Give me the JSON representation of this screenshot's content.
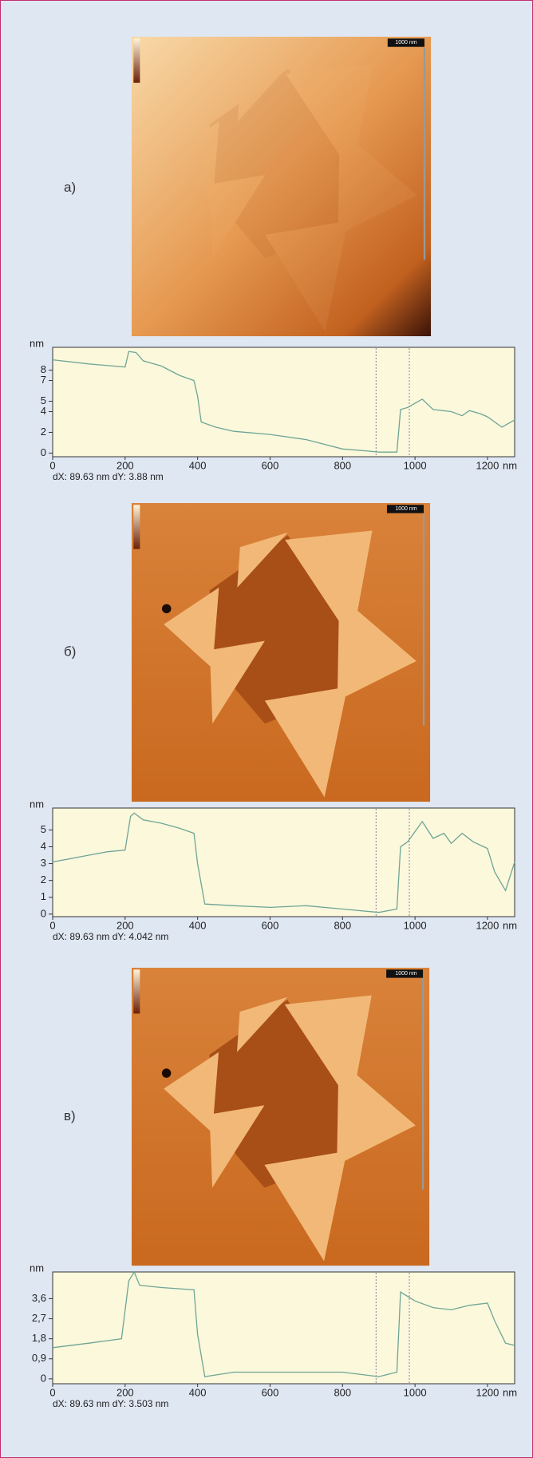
{
  "chart_data": [
    {
      "type": "line",
      "panel_label": "а)",
      "image_scale_label": "1000 nm",
      "y_label": "nm",
      "x_label": "nm",
      "caption": "dX: 89.63 nm dY: 3.88 nm",
      "color": "#6fa595",
      "x": [
        0,
        100,
        200,
        210,
        230,
        250,
        300,
        350,
        390,
        400,
        410,
        450,
        500,
        600,
        700,
        800,
        870,
        900,
        950,
        960,
        980,
        1000,
        1020,
        1050,
        1100,
        1130,
        1150,
        1180,
        1200,
        1240,
        1275
      ],
      "values": [
        9,
        8.6,
        8.3,
        9.8,
        9.7,
        8.9,
        8.4,
        7.5,
        7,
        5.5,
        3,
        2.5,
        2.1,
        1.8,
        1.3,
        0.4,
        0.2,
        0.1,
        0.1,
        4.2,
        4.4,
        4.8,
        5.2,
        4.2,
        4,
        3.6,
        4.1,
        3.8,
        3.5,
        2.5,
        3.2
      ],
      "xlim": [
        0,
        1275
      ],
      "ylim": [
        -0.35,
        10.2
      ],
      "xticks": [
        0,
        200,
        400,
        600,
        800,
        1000,
        1200
      ],
      "yticks": [
        0,
        2,
        4,
        5,
        7,
        8
      ]
    },
    {
      "type": "line",
      "panel_label": "б)",
      "image_scale_label": "1000 nm",
      "y_label": "nm",
      "x_label": "nm",
      "caption": "dX: 89.63 nm dY: 4.042 nm",
      "color": "#6fa595",
      "x": [
        0,
        50,
        100,
        150,
        200,
        215,
        225,
        250,
        300,
        350,
        390,
        400,
        420,
        500,
        600,
        700,
        800,
        900,
        950,
        960,
        980,
        1000,
        1020,
        1050,
        1080,
        1100,
        1130,
        1160,
        1200,
        1220,
        1250,
        1275
      ],
      "values": [
        3.1,
        3.3,
        3.5,
        3.7,
        3.8,
        5.8,
        6,
        5.6,
        5.4,
        5.1,
        4.8,
        3,
        0.6,
        0.5,
        0.4,
        0.5,
        0.3,
        0.1,
        0.3,
        4,
        4.3,
        4.9,
        5.5,
        4.5,
        4.8,
        4.2,
        4.8,
        4.3,
        3.9,
        2.5,
        1.4,
        3.1
      ],
      "xlim": [
        0,
        1275
      ],
      "ylim": [
        -0.15,
        6.3
      ],
      "xticks": [
        0,
        200,
        400,
        600,
        800,
        1000,
        1200
      ],
      "yticks": [
        0,
        1,
        2,
        3,
        4,
        5
      ]
    },
    {
      "type": "line",
      "panel_label": "в)",
      "image_scale_label": "1000 nm",
      "y_label": "nm",
      "x_label": "nm",
      "caption": "dX: 89.63 nm dY: 3.503 nm",
      "color": "#6fa595",
      "x": [
        0,
        100,
        190,
        210,
        225,
        240,
        300,
        390,
        400,
        420,
        500,
        600,
        700,
        800,
        900,
        950,
        960,
        1000,
        1050,
        1100,
        1150,
        1200,
        1220,
        1250,
        1275
      ],
      "values": [
        1.4,
        1.6,
        1.8,
        4.4,
        4.8,
        4.2,
        4.1,
        4,
        2,
        0.1,
        0.3,
        0.3,
        0.3,
        0.3,
        0.1,
        0.3,
        3.9,
        3.5,
        3.2,
        3.1,
        3.3,
        3.4,
        2.6,
        1.6,
        1.5
      ],
      "xlim": [
        0,
        1275
      ],
      "ylim": [
        -0.22,
        4.8
      ],
      "xticks": [
        0,
        200,
        400,
        600,
        800,
        1000,
        1200
      ],
      "yticks": [
        0,
        {
          "value": 0.9,
          "label": "0,9"
        },
        {
          "value": 1.8,
          "label": "1,8"
        },
        {
          "value": 2.7,
          "label": "2,7"
        },
        {
          "value": 3.6,
          "label": "3,6"
        }
      ]
    }
  ]
}
